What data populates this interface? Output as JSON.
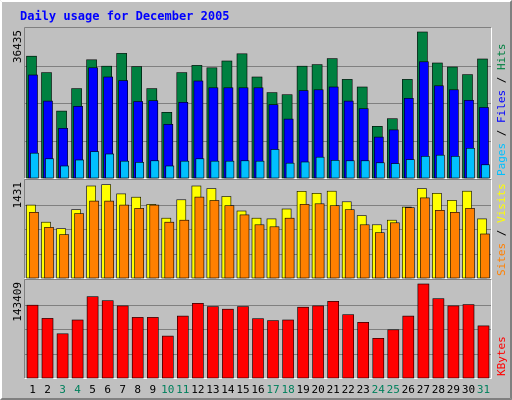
{
  "chart_data": {
    "title": "Daily usage for December 2005",
    "type": "bar",
    "days": [
      {
        "label": "1",
        "weekend": false
      },
      {
        "label": "2",
        "weekend": false
      },
      {
        "label": "3",
        "weekend": true
      },
      {
        "label": "4",
        "weekend": true
      },
      {
        "label": "5",
        "weekend": false
      },
      {
        "label": "6",
        "weekend": false
      },
      {
        "label": "7",
        "weekend": false
      },
      {
        "label": "8",
        "weekend": false
      },
      {
        "label": "9",
        "weekend": false
      },
      {
        "label": "10",
        "weekend": true
      },
      {
        "label": "11",
        "weekend": true
      },
      {
        "label": "12",
        "weekend": false
      },
      {
        "label": "13",
        "weekend": false
      },
      {
        "label": "14",
        "weekend": false
      },
      {
        "label": "15",
        "weekend": false
      },
      {
        "label": "16",
        "weekend": false
      },
      {
        "label": "17",
        "weekend": true
      },
      {
        "label": "18",
        "weekend": true
      },
      {
        "label": "19",
        "weekend": false
      },
      {
        "label": "20",
        "weekend": false
      },
      {
        "label": "21",
        "weekend": false
      },
      {
        "label": "22",
        "weekend": false
      },
      {
        "label": "23",
        "weekend": false
      },
      {
        "label": "24",
        "weekend": true
      },
      {
        "label": "25",
        "weekend": true
      },
      {
        "label": "26",
        "weekend": false
      },
      {
        "label": "27",
        "weekend": false
      },
      {
        "label": "28",
        "weekend": false
      },
      {
        "label": "29",
        "weekend": false
      },
      {
        "label": "30",
        "weekend": false
      },
      {
        "label": "31",
        "weekend": true
      }
    ],
    "panels": [
      {
        "id": "hits",
        "max_label": "36435",
        "ymax": 36435,
        "legend": [
          {
            "text": "Pages",
            "color": "#00C0FF"
          },
          {
            "text": " / ",
            "color": "#000000"
          },
          {
            "text": "Files",
            "color": "#0000FF"
          },
          {
            "text": " / ",
            "color": "#000000"
          },
          {
            "text": "Hits",
            "color": "#008040"
          }
        ],
        "series": [
          {
            "name": "Hits",
            "color": "#008040",
            "values": [
              30400,
              26300,
              16700,
              22300,
              29500,
              27900,
              31100,
              27800,
              22300,
              16400,
              26300,
              28100,
              27500,
              29200,
              31000,
              25200,
              21300,
              20800,
              27900,
              28300,
              29800,
              24600,
              22700,
              12900,
              14800,
              24600,
              36435,
              28700,
              27700,
              25800,
              29700
            ]
          },
          {
            "name": "Files",
            "color": "#0000FF",
            "values": [
              25700,
              19200,
              12400,
              17900,
              27500,
              25200,
              24300,
              19100,
              19300,
              13400,
              18900,
              24200,
              22500,
              22500,
              22500,
              22500,
              18300,
              14700,
              21800,
              22000,
              22700,
              19200,
              17300,
              10200,
              12000,
              19900,
              29000,
              23000,
              22000,
              19400,
              17600
            ]
          },
          {
            "name": "Pages",
            "color": "#00C0FF",
            "values": [
              6200,
              4800,
              3000,
              4500,
              6600,
              6000,
              4200,
              3900,
              4300,
              3000,
              4200,
              4800,
              4200,
              4200,
              4300,
              4200,
              7100,
              3700,
              4000,
              5200,
              4400,
              4300,
              4300,
              3800,
              3600,
              4600,
              5400,
              5700,
              5400,
              7400,
              3300
            ]
          }
        ]
      },
      {
        "id": "visits",
        "max_label": "1431",
        "ymax": 1431,
        "legend": [
          {
            "text": "Sites",
            "color": "#FF8000"
          },
          {
            "text": " / ",
            "color": "#000000"
          },
          {
            "text": "Visits",
            "color": "#FFFF00"
          }
        ],
        "series": [
          {
            "name": "Visits",
            "color": "#FFFF00",
            "values": [
              1110,
              850,
              750,
              1040,
              1400,
              1421,
              1280,
              1230,
              1120,
              910,
              1190,
              1400,
              1361,
              1241,
              1020,
              910,
              900,
              1050,
              1320,
              1290,
              1321,
              1160,
              950,
              810,
              880,
              1080,
              1361,
              1290,
              1181,
              1321,
              900
            ]
          },
          {
            "name": "Sites",
            "color": "#FF8000",
            "values": [
              1000,
              770,
              660,
              980,
              1170,
              1170,
              1110,
              1060,
              1110,
              850,
              880,
              1231,
              1180,
              1100,
              960,
              810,
              780,
              910,
              1120,
              1130,
              1100,
              1040,
              810,
              690,
              840,
              1070,
              1220,
              1030,
              1000,
              1060,
              670
            ]
          }
        ]
      },
      {
        "id": "kbytes",
        "max_label": "143409",
        "ymax": 143409,
        "legend": [
          {
            "text": "KBytes",
            "color": "#FF0000"
          }
        ],
        "series": [
          {
            "name": "KBytes",
            "color": "#FF0000",
            "values": [
              111000,
              91000,
              67500,
              88500,
              124000,
              118000,
              110000,
              92500,
              92500,
              64000,
              94500,
              114000,
              109000,
              105000,
              109000,
              90500,
              87500,
              88500,
              108000,
              110000,
              117000,
              96500,
              85000,
              60500,
              73500,
              94500,
              143409,
              121000,
              110000,
              112000,
              79500
            ]
          }
        ]
      }
    ]
  }
}
